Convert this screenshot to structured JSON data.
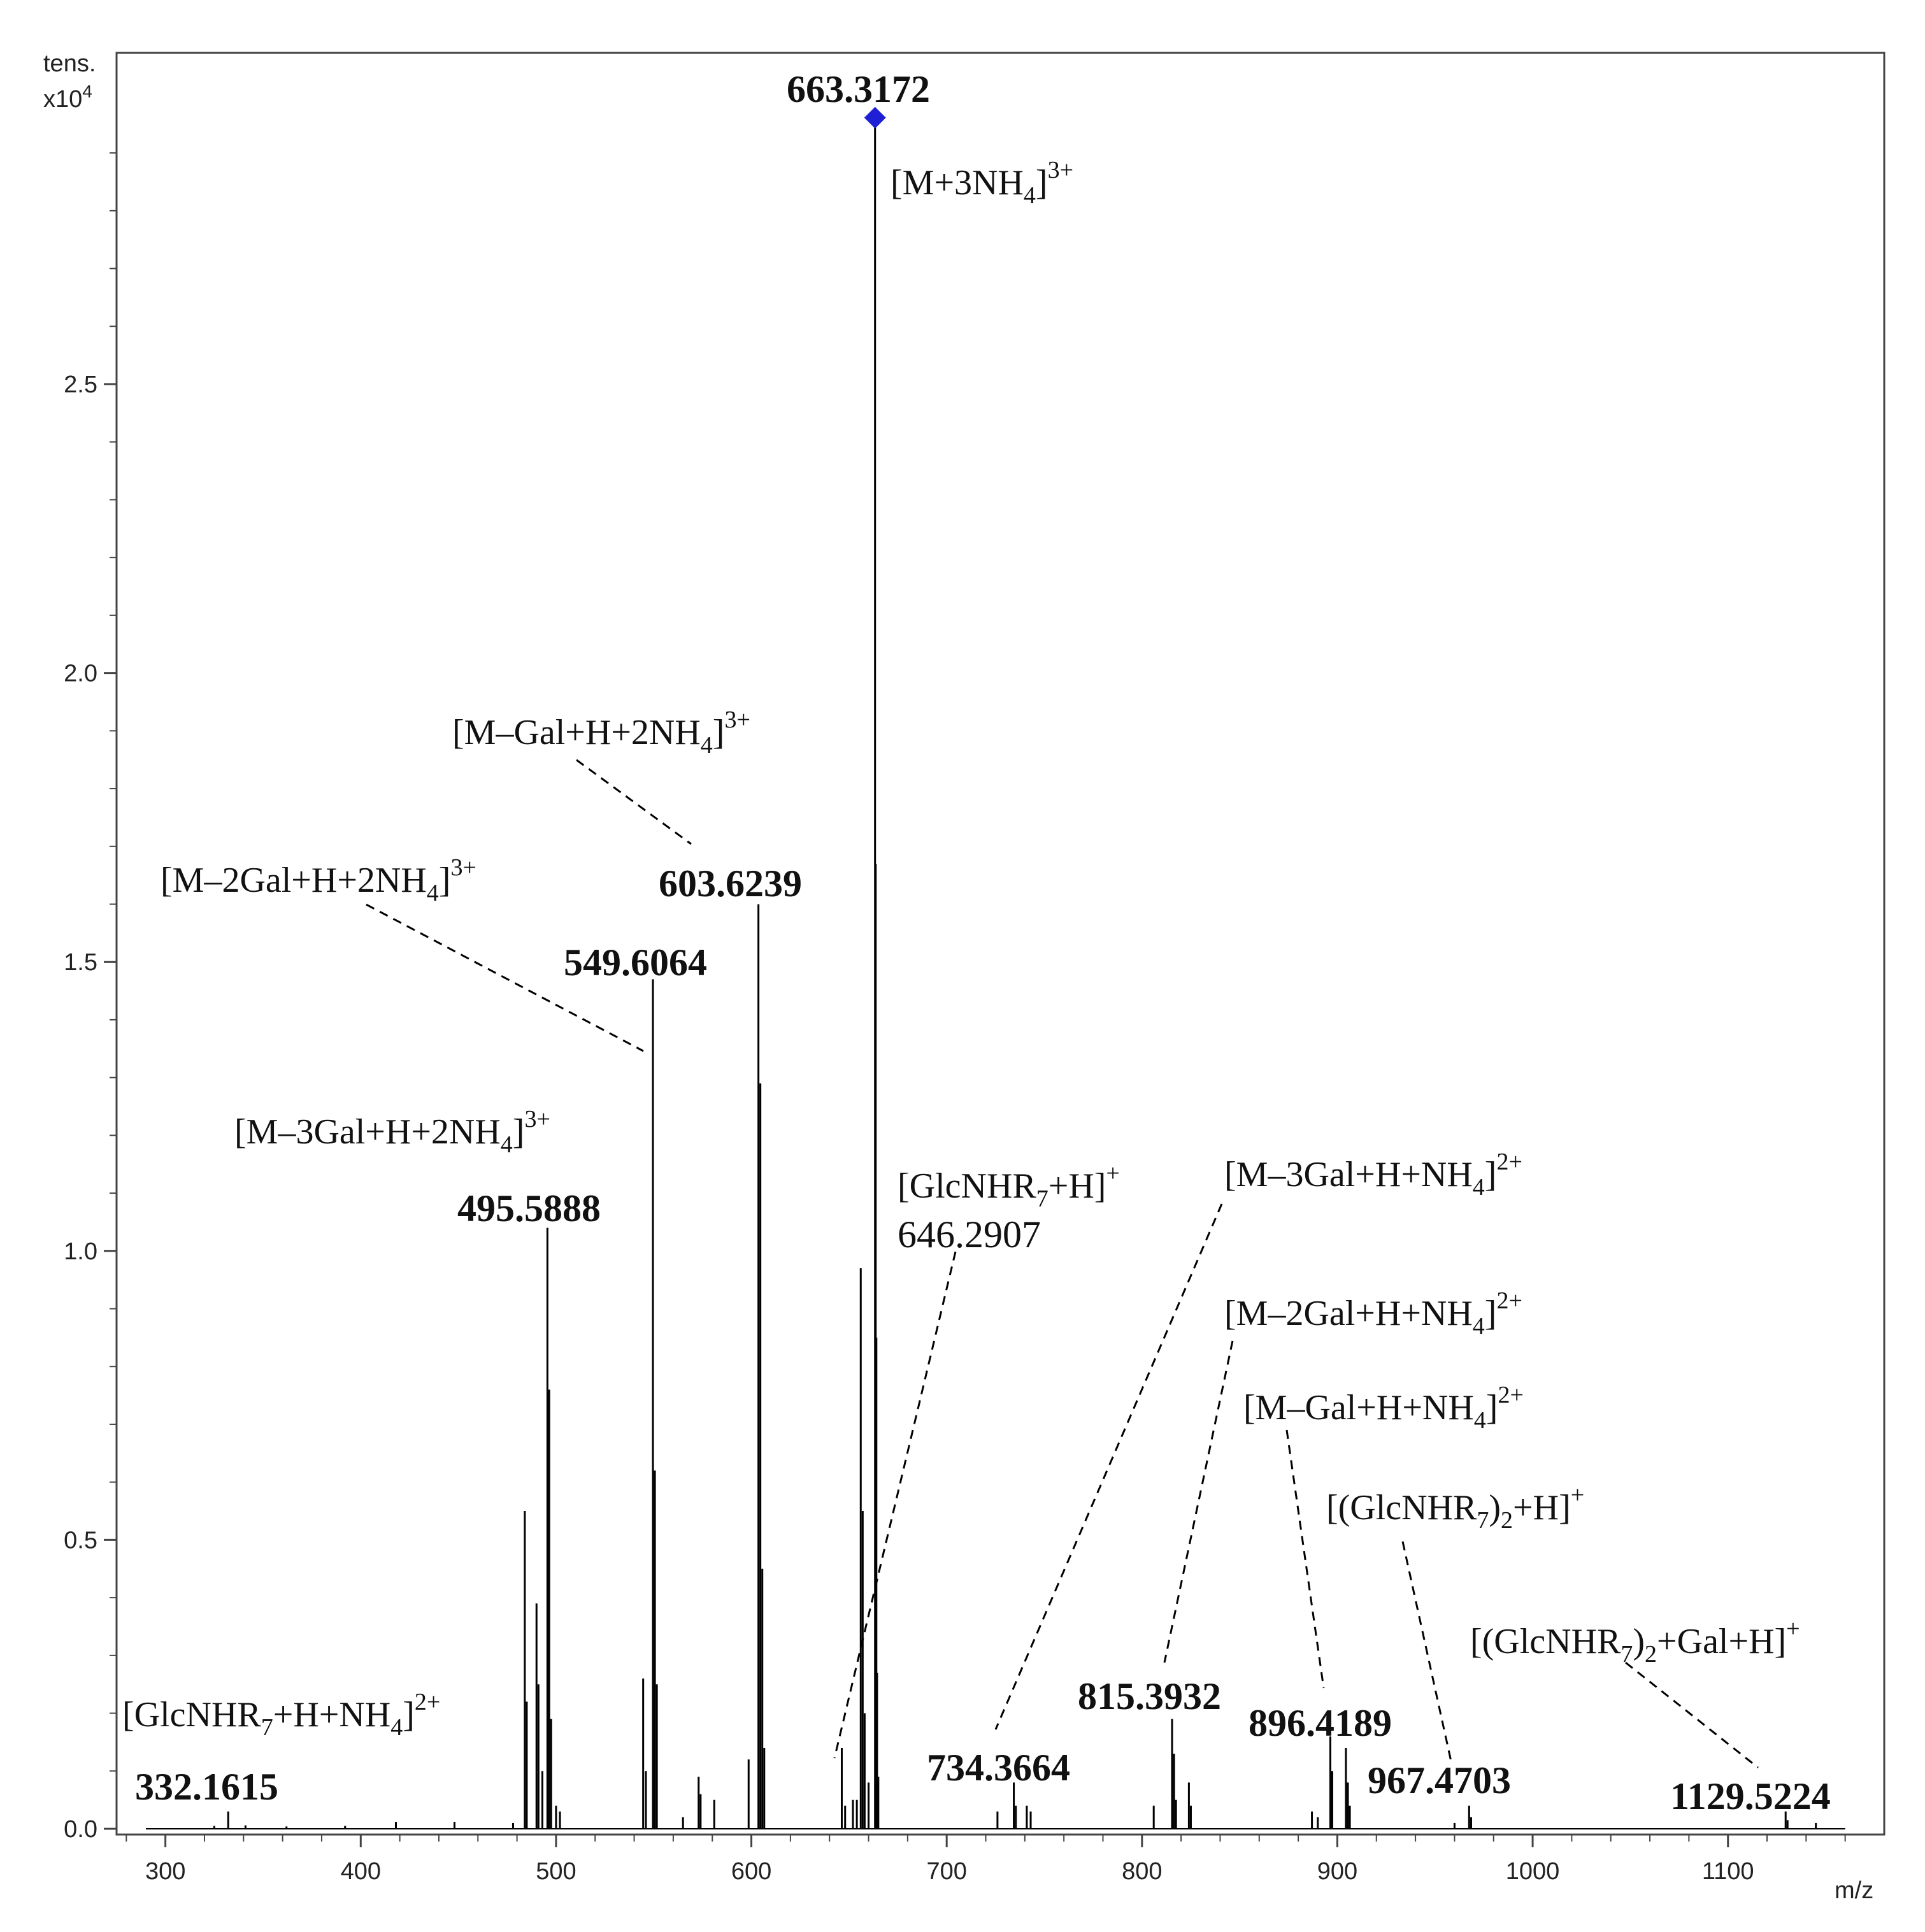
{
  "chart_data": {
    "type": "line",
    "title": "",
    "xlabel": "m/z",
    "ylabel": "tens.",
    "ylabel_multiplier": "x10",
    "ylabel_exponent": "4",
    "xlim": [
      275,
      1180
    ],
    "ylim": [
      0,
      3.07
    ],
    "x_ticks": [
      300,
      400,
      500,
      600,
      700,
      800,
      900,
      1000,
      1100
    ],
    "x_tick_labels": [
      "300",
      "400",
      "500",
      "600",
      "700",
      "800",
      "900",
      "1000",
      "1100"
    ],
    "y_ticks": [
      0,
      0.5,
      1.0,
      1.5,
      2.0,
      2.5
    ],
    "y_tick_labels": [
      "0.0",
      "0.5",
      "1.0",
      "1.5",
      "2.0",
      "2.5"
    ],
    "grid": false,
    "line_color": "#000000",
    "marker_color": "#1f1fd6",
    "peaks": [
      {
        "x": 325.0,
        "y": 0.005
      },
      {
        "x": 332.16,
        "y": 0.03
      },
      {
        "x": 341.0,
        "y": 0.006
      },
      {
        "x": 362.0,
        "y": 0.004
      },
      {
        "x": 392.0,
        "y": 0.005
      },
      {
        "x": 418.0,
        "y": 0.012
      },
      {
        "x": 448.0,
        "y": 0.012
      },
      {
        "x": 478.0,
        "y": 0.01
      },
      {
        "x": 484.0,
        "y": 0.55
      },
      {
        "x": 485.0,
        "y": 0.22
      },
      {
        "x": 490.0,
        "y": 0.39
      },
      {
        "x": 491.0,
        "y": 0.25
      },
      {
        "x": 493.0,
        "y": 0.1
      },
      {
        "x": 495.59,
        "y": 1.04
      },
      {
        "x": 496.5,
        "y": 0.76
      },
      {
        "x": 497.5,
        "y": 0.19
      },
      {
        "x": 500.0,
        "y": 0.04
      },
      {
        "x": 502.0,
        "y": 0.03
      },
      {
        "x": 544.6,
        "y": 0.26
      },
      {
        "x": 546.0,
        "y": 0.1
      },
      {
        "x": 549.61,
        "y": 1.47
      },
      {
        "x": 550.6,
        "y": 0.62
      },
      {
        "x": 551.6,
        "y": 0.25
      },
      {
        "x": 565.0,
        "y": 0.02
      },
      {
        "x": 573.0,
        "y": 0.09
      },
      {
        "x": 574.0,
        "y": 0.06
      },
      {
        "x": 581.0,
        "y": 0.05
      },
      {
        "x": 598.6,
        "y": 0.12
      },
      {
        "x": 603.62,
        "y": 1.6
      },
      {
        "x": 604.6,
        "y": 1.29
      },
      {
        "x": 605.6,
        "y": 0.45
      },
      {
        "x": 606.6,
        "y": 0.14
      },
      {
        "x": 646.29,
        "y": 0.14
      },
      {
        "x": 648.0,
        "y": 0.04
      },
      {
        "x": 652.0,
        "y": 0.05
      },
      {
        "x": 654.0,
        "y": 0.05
      },
      {
        "x": 656.0,
        "y": 0.97
      },
      {
        "x": 657.0,
        "y": 0.55
      },
      {
        "x": 658.0,
        "y": 0.2
      },
      {
        "x": 660.0,
        "y": 0.08
      },
      {
        "x": 663.32,
        "y": 2.95
      },
      {
        "x": 663.65,
        "y": 1.67
      },
      {
        "x": 664.0,
        "y": 0.85
      },
      {
        "x": 664.35,
        "y": 0.27
      },
      {
        "x": 665.0,
        "y": 0.09
      },
      {
        "x": 726.0,
        "y": 0.03
      },
      {
        "x": 734.37,
        "y": 0.08
      },
      {
        "x": 735.4,
        "y": 0.04
      },
      {
        "x": 741.0,
        "y": 0.04
      },
      {
        "x": 743.0,
        "y": 0.03
      },
      {
        "x": 806.0,
        "y": 0.04
      },
      {
        "x": 815.39,
        "y": 0.19
      },
      {
        "x": 816.4,
        "y": 0.13
      },
      {
        "x": 817.4,
        "y": 0.05
      },
      {
        "x": 824.0,
        "y": 0.08
      },
      {
        "x": 825.0,
        "y": 0.04
      },
      {
        "x": 887.0,
        "y": 0.03
      },
      {
        "x": 890.0,
        "y": 0.02
      },
      {
        "x": 896.42,
        "y": 0.16
      },
      {
        "x": 897.4,
        "y": 0.1
      },
      {
        "x": 904.4,
        "y": 0.14
      },
      {
        "x": 905.4,
        "y": 0.08
      },
      {
        "x": 906.4,
        "y": 0.04
      },
      {
        "x": 960.0,
        "y": 0.01
      },
      {
        "x": 967.47,
        "y": 0.04
      },
      {
        "x": 968.5,
        "y": 0.02
      },
      {
        "x": 1129.52,
        "y": 0.03
      },
      {
        "x": 1130.5,
        "y": 0.015
      },
      {
        "x": 1145.0,
        "y": 0.01
      }
    ],
    "peak_labels": [
      {
        "x": 332.16,
        "y": 0.03,
        "text": "332.1615"
      },
      {
        "x": 495.59,
        "y": 1.04,
        "text": "495.5888"
      },
      {
        "x": 549.61,
        "y": 1.47,
        "text": "549.6064"
      },
      {
        "x": 603.62,
        "y": 1.6,
        "text": "603.6239"
      },
      {
        "x": 646.29,
        "y": 0.14,
        "text": "646.2907"
      },
      {
        "x": 663.32,
        "y": 2.95,
        "text": "663.3172"
      },
      {
        "x": 734.37,
        "y": 0.08,
        "text": "734.3664"
      },
      {
        "x": 815.39,
        "y": 0.19,
        "text": "815.3932"
      },
      {
        "x": 896.42,
        "y": 0.16,
        "text": "896.4189"
      },
      {
        "x": 967.47,
        "y": 0.04,
        "text": "967.4703"
      },
      {
        "x": 1129.52,
        "y": 0.03,
        "text": "1129.5224"
      }
    ],
    "ion_annotations": [
      {
        "text": "[M+3NH4]3+",
        "peak": "663.3172"
      },
      {
        "text": "[M–Gal+H+2NH4]3+",
        "peak": "603.6239"
      },
      {
        "text": "[M–2Gal+H+2NH4]3+",
        "peak": "549.6064"
      },
      {
        "text": "[M–3Gal+H+2NH4]3+",
        "peak": "495.5888"
      },
      {
        "text": "[GlcNHR7+H]+",
        "peak": "646.2907"
      },
      {
        "text": "[M–3Gal+H+NH4]2+",
        "peak": "734.3664"
      },
      {
        "text": "[M–2Gal+H+NH4]2+",
        "peak": "815.3932"
      },
      {
        "text": "[M–Gal+H+NH4]2+",
        "peak": "896.4189"
      },
      {
        "text": "[(GlcNHR7)2+H]+",
        "peak": "967.4703"
      },
      {
        "text": "[(GlcNHR7)2+Gal+H]+",
        "peak": "1129.5224"
      },
      {
        "text": "[GlcNHR7+H+NH4]2+",
        "peak": "332.1615"
      }
    ]
  }
}
